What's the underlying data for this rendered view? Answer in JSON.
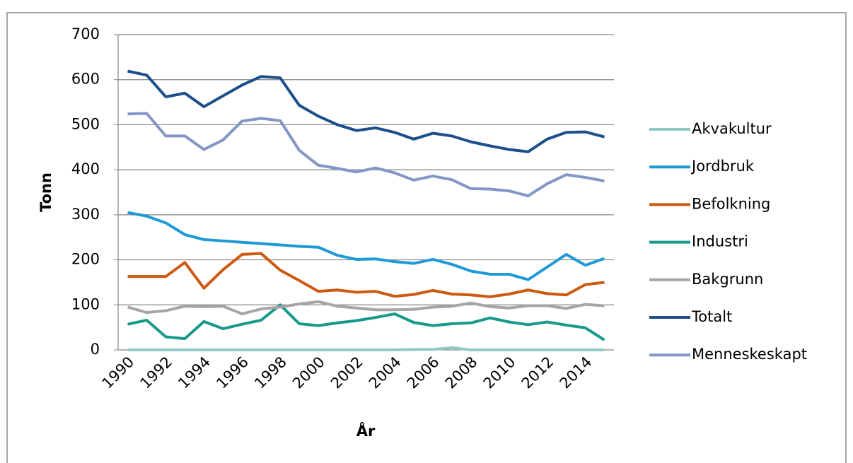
{
  "chart_data": {
    "type": "line",
    "x_label": "År",
    "y_label": "Tonn",
    "categories": [
      1990,
      null,
      1992,
      null,
      1994,
      null,
      1996,
      null,
      1998,
      null,
      2000,
      null,
      2002,
      null,
      2004,
      null,
      2006,
      null,
      2008,
      null,
      2010,
      null,
      2012,
      null,
      2014,
      null
    ],
    "ylim": [
      0,
      700
    ],
    "yticks": [
      0,
      100,
      200,
      300,
      400,
      500,
      600,
      700
    ],
    "grid": true,
    "legend": "right",
    "series": [
      {
        "name": "Akvakultur",
        "color": "#93c9c3",
        "values": [
          0,
          0,
          0,
          0,
          0,
          0,
          0,
          0,
          0,
          0,
          0,
          0,
          0,
          0,
          0,
          1,
          1,
          5,
          0,
          0,
          0,
          0,
          0,
          0,
          0,
          0
        ]
      },
      {
        "name": "Jordbruk",
        "color": "#1f9ad6",
        "values": [
          305,
          297,
          282,
          256,
          245,
          242,
          239,
          236,
          233,
          230,
          228,
          210,
          201,
          202,
          196,
          192,
          201,
          190,
          175,
          168,
          168,
          156,
          184,
          212,
          188,
          203
        ]
      },
      {
        "name": "Befolkning",
        "color": "#cc5a12",
        "values": [
          163,
          163,
          163,
          194,
          137,
          178,
          212,
          214,
          177,
          154,
          130,
          133,
          128,
          130,
          119,
          123,
          132,
          124,
          122,
          118,
          124,
          133,
          125,
          122,
          145,
          150
        ]
      },
      {
        "name": "Industri",
        "color": "#17998c",
        "values": [
          57,
          66,
          29,
          25,
          63,
          47,
          57,
          66,
          100,
          58,
          54,
          60,
          65,
          72,
          80,
          61,
          54,
          58,
          60,
          71,
          62,
          56,
          62,
          55,
          49,
          22
        ]
      },
      {
        "name": "Bakgrunn",
        "color": "#a5a5a5",
        "values": [
          95,
          83,
          87,
          97,
          96,
          97,
          80,
          91,
          95,
          102,
          107,
          97,
          93,
          89,
          89,
          90,
          95,
          97,
          104,
          96,
          93,
          98,
          98,
          92,
          101,
          98
        ]
      },
      {
        "name": "Totalt",
        "color": "#1d4f8c",
        "values": [
          619,
          610,
          562,
          570,
          540,
          564,
          588,
          607,
          604,
          543,
          519,
          500,
          487,
          493,
          483,
          468,
          481,
          475,
          462,
          453,
          445,
          440,
          468,
          483,
          484,
          473
        ]
      },
      {
        "name": "Menneskeskapt",
        "color": "#8396c6",
        "values": [
          524,
          525,
          475,
          475,
          445,
          466,
          508,
          514,
          509,
          443,
          410,
          403,
          395,
          404,
          393,
          377,
          386,
          378,
          358,
          357,
          353,
          342,
          369,
          389,
          383,
          375
        ]
      }
    ]
  }
}
